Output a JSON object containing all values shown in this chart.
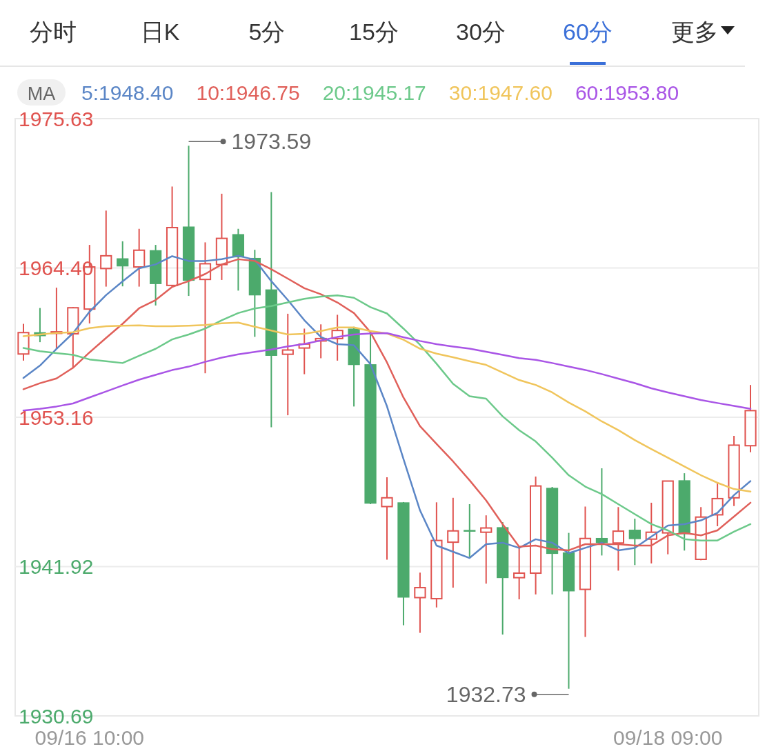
{
  "chart_data": {
    "type": "candlestick",
    "categories": [
      null,
      null,
      null,
      null,
      "09/16 10:00",
      null,
      null,
      null,
      null,
      null,
      null,
      null,
      null,
      null,
      null,
      null,
      null,
      null,
      null,
      null,
      null,
      null,
      null,
      null,
      null,
      null,
      null,
      null,
      null,
      null,
      null,
      null,
      null,
      null,
      null,
      null,
      null,
      null,
      null,
      "09/18 09:00",
      null,
      null,
      null,
      null,
      null
    ],
    "ohlc": [
      [
        1957.92,
        1960.19,
        1957.42,
        1959.53
      ],
      [
        1959.56,
        1961.38,
        1958.81,
        1959.26
      ],
      [
        1959.47,
        1962.91,
        1958.31,
        1959.59
      ],
      [
        1959.44,
        1961.45,
        1956.84,
        1961.4
      ],
      [
        1961.3,
        1966.13,
        1960.22,
        1964.47
      ],
      [
        1964.35,
        1968.71,
        1962.99,
        1965.31
      ],
      [
        1965.12,
        1966.4,
        1963.01,
        1964.51
      ],
      [
        1964.47,
        1967.34,
        1962.99,
        1965.73
      ],
      [
        1965.73,
        1966.13,
        1961.57,
        1963.18
      ],
      [
        1963.08,
        1970.52,
        1963.01,
        1967.43
      ],
      [
        1967.51,
        1973.59,
        1962.29,
        1963.43
      ],
      [
        1963.53,
        1966.32,
        1956.47,
        1964.71
      ],
      [
        1964.65,
        1969.98,
        1963.49,
        1966.62
      ],
      [
        1966.94,
        1967.34,
        1962.69,
        1965.19
      ],
      [
        1965.15,
        1965.76,
        1959.21,
        1962.33
      ],
      [
        1962.78,
        1970.1,
        1952.41,
        1957.78
      ],
      [
        1957.9,
        1960.95,
        1953.31,
        1958.22
      ],
      [
        1958.37,
        1959.83,
        1956.4,
        1958.67
      ],
      [
        1958.9,
        1960.15,
        1957.6,
        1959.08
      ],
      [
        1959.08,
        1960.87,
        1957.42,
        1959.69
      ],
      [
        1959.83,
        1959.97,
        1953.97,
        1957.09
      ],
      [
        1957.15,
        1959.47,
        1946.62,
        1946.66
      ],
      [
        1946.44,
        1948.65,
        1942.44,
        1947.1
      ],
      [
        1946.76,
        1946.78,
        1937.51,
        1939.59
      ],
      [
        1939.59,
        1941.47,
        1936.94,
        1940.34
      ],
      [
        1939.51,
        1946.76,
        1938.85,
        1943.89
      ],
      [
        1943.76,
        1947.1,
        1940.34,
        1944.61
      ],
      [
        1944.68,
        1946.62,
        1942.66,
        1944.55
      ],
      [
        1944.51,
        1945.78,
        1940.64,
        1944.83
      ],
      [
        1944.89,
        1945.27,
        1936.81,
        1941.06
      ],
      [
        1941.09,
        1943.42,
        1939.46,
        1941.43
      ],
      [
        1941.43,
        1948.7,
        1939.83,
        1947.99
      ],
      [
        1947.85,
        1947.92,
        1939.83,
        1942.88
      ],
      [
        1942.99,
        1944.46,
        1932.73,
        1940.06
      ],
      [
        1940.21,
        1946.44,
        1936.63,
        1944.04
      ],
      [
        1944.08,
        1949.32,
        1942.76,
        1943.7
      ],
      [
        1943.7,
        1946.4,
        1941.62,
        1944.59
      ],
      [
        1944.7,
        1945.53,
        1942.04,
        1943.99
      ],
      [
        1943.99,
        1946.73,
        1942.16,
        1944.51
      ],
      [
        1944.46,
        1948.36,
        1942.85,
        1948.36
      ],
      [
        1948.42,
        1948.95,
        1943.13,
        1944.36
      ],
      [
        1942.47,
        1946.4,
        1942.4,
        1945.65
      ],
      [
        1945.82,
        1948.23,
        1944.96,
        1947.04
      ],
      [
        1947.1,
        1951.76,
        1946.48,
        1951.06
      ],
      [
        1951.02,
        1955.59,
        1950.53,
        1953.66
      ]
    ],
    "colors": [
      "#e0534f",
      "#4caa6c",
      "#e0534f",
      "#e0534f",
      "#e0534f",
      "#e0534f",
      "#4caa6c",
      "#e0534f",
      "#4caa6c",
      "#e0534f",
      "#4caa6c",
      "#e0534f",
      "#e0534f",
      "#4caa6c",
      "#4caa6c",
      "#4caa6c",
      "#e0534f",
      "#e0534f",
      "#e0534f",
      "#e0534f",
      "#4caa6c",
      "#4caa6c",
      "#e0534f",
      "#4caa6c",
      "#e0534f",
      "#e0534f",
      "#e0534f",
      "#4caa6c",
      "#e0534f",
      "#4caa6c",
      "#e0534f",
      "#e0534f",
      "#4caa6c",
      "#4caa6c",
      "#e0534f",
      "#4caa6c",
      "#e0534f",
      "#4caa6c",
      "#e0534f",
      "#e0534f",
      "#4caa6c",
      "#e0534f",
      "#e0534f",
      "#e0534f",
      "#e0534f"
    ],
    "series": [
      {
        "name": "5:1948.40",
        "type": "line",
        "color": "#5b86c6",
        "values": [
          1956.12,
          1957.05,
          1958.3,
          1959.49,
          1961.1,
          1962.35,
          1963.38,
          1964.37,
          1964.66,
          1965.28,
          1964.92,
          1964.92,
          1965.06,
          1965.31,
          1965.01,
          1963.4,
          1961.98,
          1960.46,
          1959.2,
          1958.66,
          1958.58,
          1957.16,
          1953.99,
          1950.02,
          1946.15,
          1943.51,
          1943.04,
          1942.57,
          1943.61,
          1943.72,
          1943.33,
          1943.98,
          1943.72,
          1942.94,
          1943.33,
          1943.72,
          1943.15,
          1943.33,
          1944.18,
          1945.01,
          1945.12,
          1945.4,
          1945.97,
          1947.3,
          1948.36
        ]
      },
      {
        "name": "10:1946.75",
        "type": "line",
        "color": "#e0605a",
        "values": [
          1955.27,
          1955.72,
          1956.08,
          1956.88,
          1958.04,
          1959.13,
          1960.19,
          1961.36,
          1961.98,
          1962.97,
          1963.4,
          1963.94,
          1964.66,
          1965.05,
          1964.92,
          1964.3,
          1963.59,
          1962.87,
          1962.42,
          1961.8,
          1961.0,
          1959.56,
          1957.29,
          1954.64,
          1952.49,
          1951.16,
          1949.84,
          1948.42,
          1946.91,
          1945.12,
          1943.42,
          1943.51,
          1943.23,
          1943.15,
          1943.61,
          1943.61,
          1943.61,
          1943.51,
          1943.51,
          1944.27,
          1944.46,
          1944.27,
          1944.65,
          1945.69,
          1946.73
        ]
      },
      {
        "name": "20:1945.17",
        "type": "line",
        "color": "#6cc98a",
        "values": [
          1958.37,
          1958.13,
          1957.99,
          1957.86,
          1957.51,
          1957.38,
          1957.24,
          1957.78,
          1958.31,
          1959.02,
          1959.39,
          1959.83,
          1960.46,
          1961.0,
          1961.35,
          1961.53,
          1961.8,
          1962.07,
          1962.24,
          1962.33,
          1962.15,
          1961.44,
          1960.97,
          1959.83,
          1958.61,
          1957.19,
          1955.68,
          1954.74,
          1954.56,
          1953.23,
          1952.19,
          1951.34,
          1950.12,
          1948.8,
          1947.94,
          1947.38,
          1946.62,
          1945.87,
          1945.12,
          1944.65,
          1943.99,
          1943.89,
          1943.89,
          1944.55,
          1945.12
        ]
      },
      {
        "name": "30:1947.60",
        "type": "line",
        "color": "#f0c55c",
        "values": [
          1959.26,
          1959.39,
          1959.51,
          1959.56,
          1959.87,
          1960.01,
          1960.05,
          1960.07,
          1960.01,
          1960.01,
          1960.05,
          1960.1,
          1960.23,
          1960.28,
          1959.97,
          1959.69,
          1959.39,
          1959.44,
          1959.65,
          1959.92,
          1959.92,
          1959.65,
          1959.46,
          1958.99,
          1958.32,
          1957.95,
          1957.67,
          1957.38,
          1957.1,
          1956.53,
          1955.96,
          1955.59,
          1955.03,
          1954.27,
          1953.61,
          1952.85,
          1952.19,
          1951.44,
          1950.77,
          1950.12,
          1949.46,
          1948.8,
          1948.23,
          1947.76,
          1947.57
        ]
      },
      {
        "name": "60:1953.80",
        "type": "line",
        "color": "#a955e6",
        "values": [
          1953.67,
          1953.79,
          1953.97,
          1954.2,
          1954.65,
          1955.1,
          1955.55,
          1955.99,
          1956.35,
          1956.71,
          1956.97,
          1957.33,
          1957.65,
          1957.9,
          1958.08,
          1958.26,
          1958.49,
          1958.67,
          1958.94,
          1959.2,
          1959.39,
          1959.47,
          1959.49,
          1959.18,
          1958.9,
          1958.66,
          1958.48,
          1958.32,
          1958.09,
          1957.86,
          1957.61,
          1957.48,
          1957.24,
          1956.97,
          1956.72,
          1956.41,
          1956.07,
          1955.73,
          1955.34,
          1955.03,
          1954.74,
          1954.46,
          1954.23,
          1954.02,
          1953.8
        ]
      }
    ],
    "ylim": [
      1930.69,
      1975.63
    ],
    "yticks": [
      1930.69,
      1941.92,
      1953.16,
      {
        "value": 1964.4,
        "label": "1964.40"
      },
      1975.63
    ],
    "grid": "y",
    "legend": "top",
    "legend_title": "MA",
    "annotations": [
      "分时",
      "日K",
      "5分",
      "15分",
      "30分",
      "60分",
      "更多",
      "1973.59",
      "1932.73"
    ]
  }
}
